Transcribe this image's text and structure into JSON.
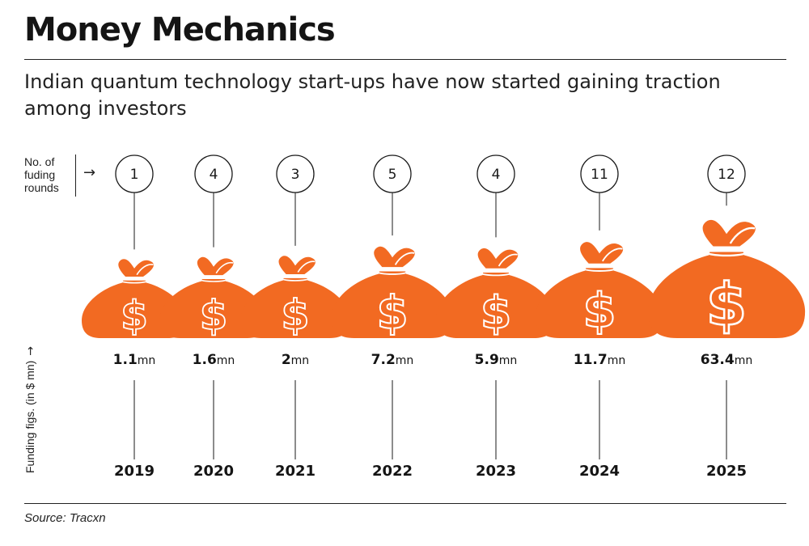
{
  "title": "Money Mechanics",
  "subtitle": "Indian quantum technology start-ups have now started gaining traction among investors",
  "rounds_label": "No. of fuding rounds",
  "rounds_arrow": "→",
  "funding_label": "Funding figs. (in $ mn)",
  "funding_arrow": "→",
  "source": "Source: Tracxn",
  "colors": {
    "bag": "#f26a22",
    "outline": "#ffffff",
    "text": "#141414"
  },
  "chart_data": {
    "type": "bar",
    "categories": [
      "2019",
      "2020",
      "2021",
      "2022",
      "2023",
      "2024",
      "2025"
    ],
    "series": [
      {
        "name": "No. of fuding rounds",
        "values": [
          1,
          4,
          3,
          5,
          4,
          11,
          12
        ]
      },
      {
        "name": "Funding figs. (in $ mn)",
        "values": [
          1.1,
          1.6,
          2,
          7.2,
          5.9,
          11.7,
          63.4
        ]
      }
    ],
    "value_labels": [
      "1.1",
      "1.6",
      "2",
      "7.2",
      "5.9",
      "11.7",
      "63.4"
    ],
    "value_unit": "mn",
    "bag_icon": "money-bag-dollar-icon"
  }
}
